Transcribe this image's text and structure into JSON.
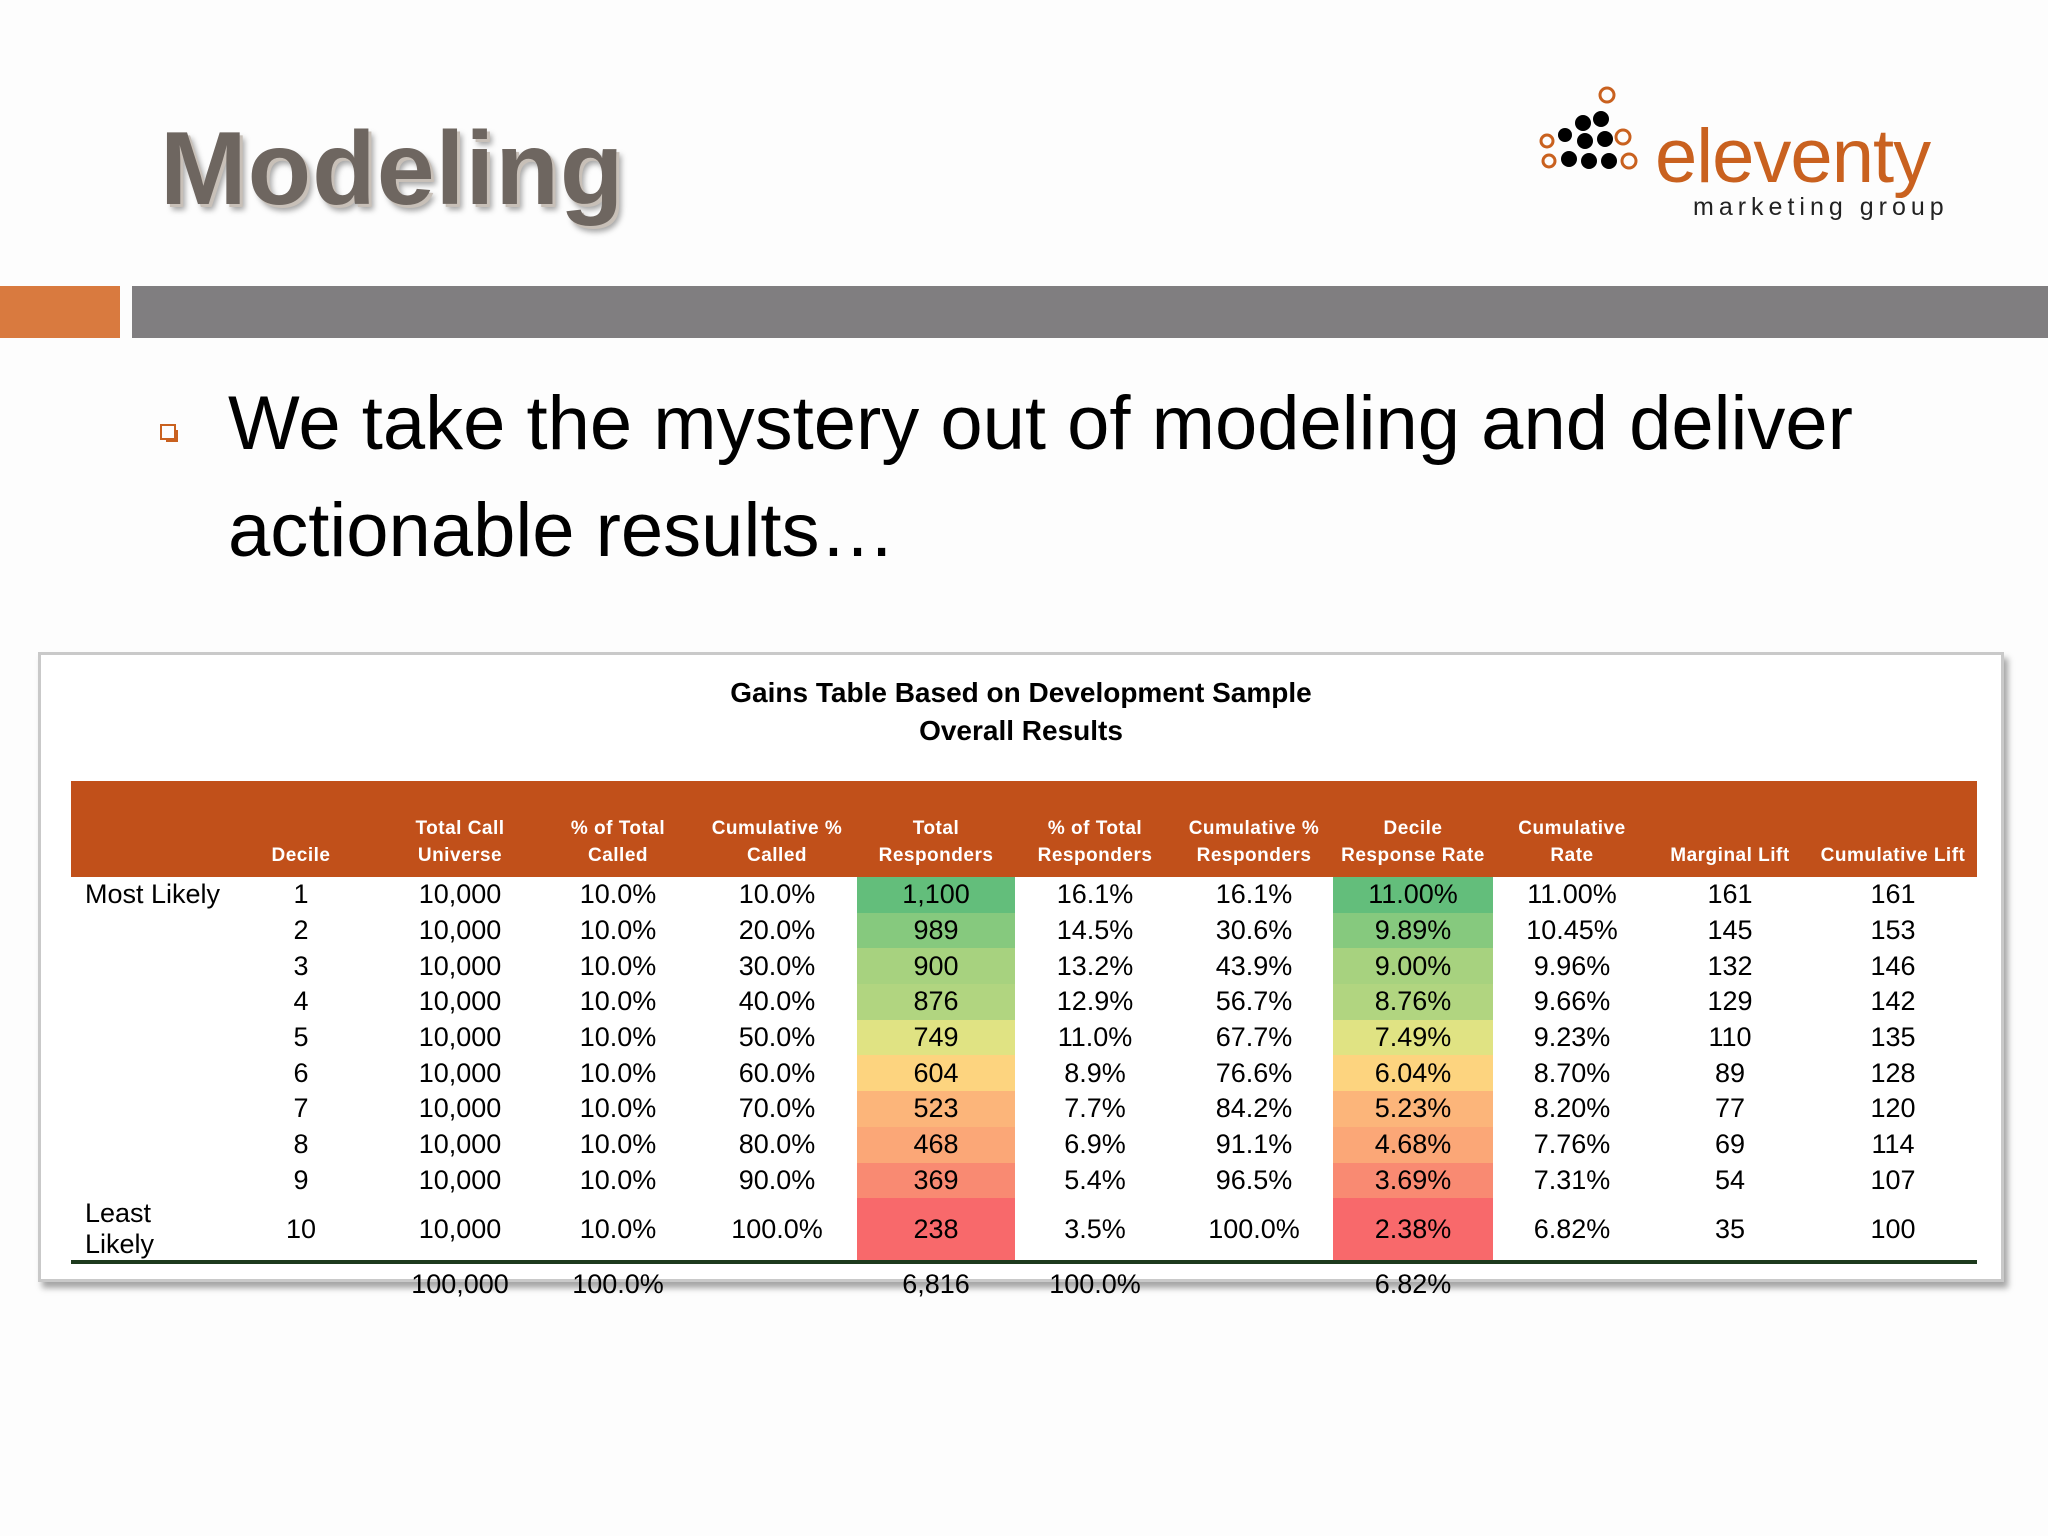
{
  "slide": {
    "title": "Modeling",
    "bullet": "We take the mystery out of modeling and deliver actionable results…"
  },
  "logo": {
    "name": "eleventy",
    "tagline": "marketing group",
    "brand_color": "#c9611f"
  },
  "colors": {
    "accent_orange": "#d97a3f",
    "header_band_gray": "#807e80",
    "table_header": "#c1501a"
  },
  "table": {
    "title_line1": "Gains Table Based on Development Sample",
    "title_line2": "Overall Results",
    "headers": [
      {
        "line1": "",
        "line2": ""
      },
      {
        "line1": "",
        "line2": "Decile"
      },
      {
        "line1": "Total Call",
        "line2": "Universe"
      },
      {
        "line1": "% of Total",
        "line2": "Called"
      },
      {
        "line1": "Cumulative %",
        "line2": "Called"
      },
      {
        "line1": "Total",
        "line2": "Responders"
      },
      {
        "line1": "% of Total",
        "line2": "Responders"
      },
      {
        "line1": "Cumulative %",
        "line2": "Responders"
      },
      {
        "line1": "Decile",
        "line2": "Response Rate"
      },
      {
        "line1": "Cumulative",
        "line2": "Rate"
      },
      {
        "line1": "",
        "line2": "Marginal Lift"
      },
      {
        "line1": "",
        "line2": "Cumulative Lift"
      }
    ],
    "rows": [
      [
        "Most Likely",
        "1",
        "10,000",
        "10.0%",
        "10.0%",
        "1,100",
        "16.1%",
        "16.1%",
        "11.00%",
        "11.00%",
        "161",
        "161"
      ],
      [
        "",
        "2",
        "10,000",
        "10.0%",
        "20.0%",
        "989",
        "14.5%",
        "30.6%",
        "9.89%",
        "10.45%",
        "145",
        "153"
      ],
      [
        "",
        "3",
        "10,000",
        "10.0%",
        "30.0%",
        "900",
        "13.2%",
        "43.9%",
        "9.00%",
        "9.96%",
        "132",
        "146"
      ],
      [
        "",
        "4",
        "10,000",
        "10.0%",
        "40.0%",
        "876",
        "12.9%",
        "56.7%",
        "8.76%",
        "9.66%",
        "129",
        "142"
      ],
      [
        "",
        "5",
        "10,000",
        "10.0%",
        "50.0%",
        "749",
        "11.0%",
        "67.7%",
        "7.49%",
        "9.23%",
        "110",
        "135"
      ],
      [
        "",
        "6",
        "10,000",
        "10.0%",
        "60.0%",
        "604",
        "8.9%",
        "76.6%",
        "6.04%",
        "8.70%",
        "89",
        "128"
      ],
      [
        "",
        "7",
        "10,000",
        "10.0%",
        "70.0%",
        "523",
        "7.7%",
        "84.2%",
        "5.23%",
        "8.20%",
        "77",
        "120"
      ],
      [
        "",
        "8",
        "10,000",
        "10.0%",
        "80.0%",
        "468",
        "6.9%",
        "91.1%",
        "4.68%",
        "7.76%",
        "69",
        "114"
      ],
      [
        "",
        "9",
        "10,000",
        "10.0%",
        "90.0%",
        "369",
        "5.4%",
        "96.5%",
        "3.69%",
        "7.31%",
        "54",
        "107"
      ],
      [
        "Least Likely",
        "10",
        "10,000",
        "10.0%",
        "100.0%",
        "238",
        "3.5%",
        "100.0%",
        "2.38%",
        "6.82%",
        "35",
        "100"
      ]
    ],
    "totals": [
      "",
      "",
      "100,000",
      "100.0%",
      "",
      "6,816",
      "100.0%",
      "",
      "6.82%",
      "",
      "",
      ""
    ],
    "heatmap_colors": [
      "#63be7b",
      "#86c97e",
      "#a7d27f",
      "#b1d580",
      "#e0e383",
      "#fdd47f",
      "#fcb57a",
      "#fba777",
      "#f98a72",
      "#f8696b"
    ],
    "heatmap_columns": [
      5,
      8
    ]
  }
}
